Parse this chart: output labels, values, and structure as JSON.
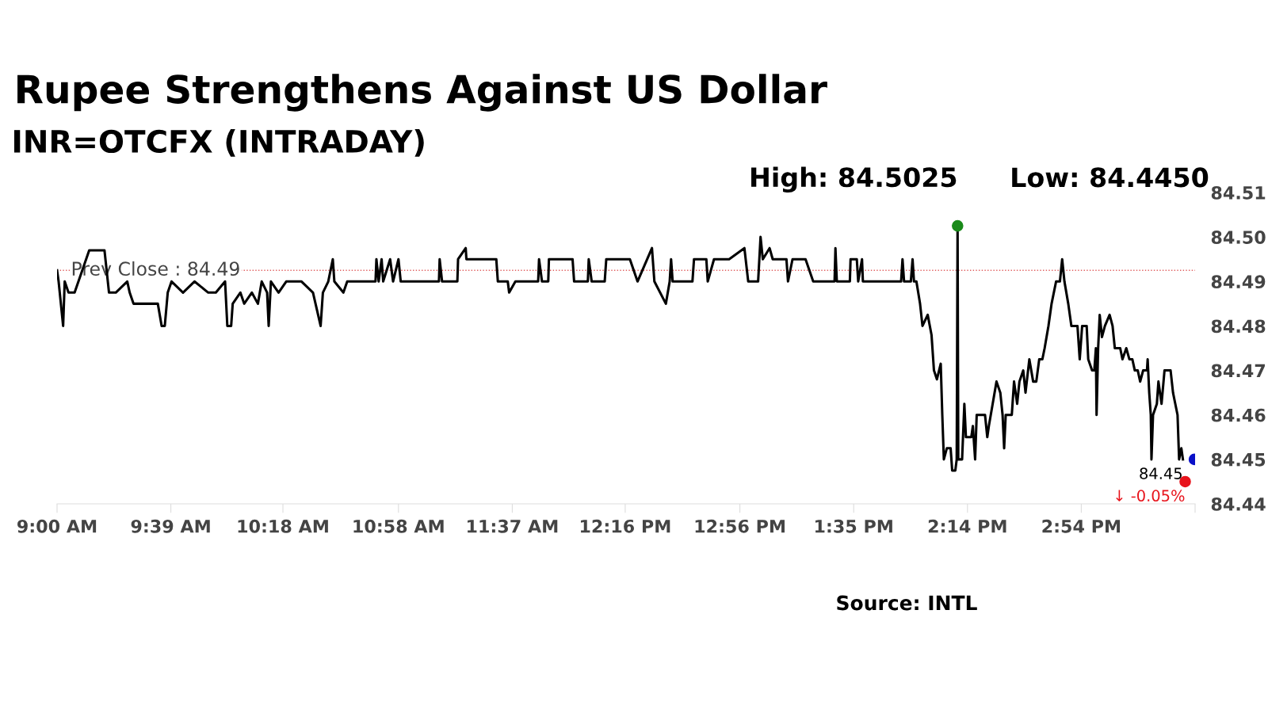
{
  "chart_data": {
    "type": "line",
    "title": "Rupee Strengthens Against US Dollar",
    "subtitle": "INR=OTCFX (INTRADAY)",
    "annotations": [
      "High: 84.5025",
      "Low: 84.4450",
      {
        "text": "84.45",
        "x": 15.48,
        "y": 84.45
      },
      {
        "text": "↓ -0.05%",
        "x": 15.493,
        "y": 84.445
      },
      "Source: INTL"
    ],
    "xlim": [
      9,
      15.55
    ],
    "ylim": [
      84.44,
      84.51
    ],
    "xticks": [
      {
        "value": 9,
        "label": "9:00 AM"
      },
      {
        "value": 9.655,
        "label": "9:39 AM"
      },
      {
        "value": 10.3,
        "label": "10:18 AM"
      },
      {
        "value": 10.965,
        "label": "10:58 AM"
      },
      {
        "value": 11.62,
        "label": "11:37 AM"
      },
      {
        "value": 12.27,
        "label": "12:16 PM"
      },
      {
        "value": 12.93,
        "label": "12:56 PM"
      },
      {
        "value": 13.585,
        "label": "1:35 PM"
      },
      {
        "value": 14.24,
        "label": "2:14 PM"
      },
      {
        "value": 14.895,
        "label": "2:54 PM"
      },
      {
        "value": 15.55,
        "label": null
      }
    ],
    "yticks": [
      84.44,
      84.45,
      84.46,
      84.47,
      84.48,
      84.49,
      {
        "value": 84.5,
        "label": "84.50"
      },
      84.51
    ],
    "grid": false,
    "legend": false,
    "ref_lines": [
      {
        "axis": "y",
        "value": 84.4925,
        "label": "Prev Close : 84.49",
        "color": "#e06060",
        "line_style": "dotted"
      }
    ],
    "series": [
      {
        "color": "#000000",
        "x": [
          9.0,
          9.009,
          9.035,
          9.044,
          9.066,
          9.101,
          9.185,
          9.273,
          9.299,
          9.338,
          9.404,
          9.418,
          9.44,
          9.58,
          9.602,
          9.62,
          9.637,
          9.659,
          9.725,
          9.791,
          9.87,
          9.914,
          9.967,
          9.98,
          10.002,
          10.011,
          10.055,
          10.077,
          10.121,
          10.156,
          10.178,
          10.209,
          10.218,
          10.231,
          10.275,
          10.319,
          10.407,
          10.473,
          10.517,
          10.53,
          10.561,
          10.587,
          10.596,
          10.648,
          10.67,
          10.833,
          10.838,
          10.851,
          10.868,
          10.877,
          10.917,
          10.934,
          10.965,
          10.978,
          11.198,
          11.202,
          11.216,
          11.304,
          11.308,
          11.352,
          11.356,
          11.528,
          11.537,
          11.594,
          11.602,
          11.638,
          11.769,
          11.774,
          11.791,
          11.827,
          11.831,
          11.967,
          11.976,
          12.055,
          12.06,
          12.077,
          12.152,
          12.161,
          12.297,
          12.341,
          12.424,
          12.438,
          12.504,
          12.526,
          12.534,
          12.543,
          12.657,
          12.666,
          12.737,
          12.745,
          12.781,
          12.868,
          12.956,
          12.978,
          13.035,
          13.049,
          13.062,
          13.101,
          13.119,
          13.198,
          13.207,
          13.233,
          13.308,
          13.352,
          13.475,
          13.48,
          13.488,
          13.563,
          13.567,
          13.603,
          13.611,
          13.633,
          13.638,
          13.858,
          13.866,
          13.875,
          13.914,
          13.924,
          13.932,
          13.946,
          13.967,
          13.981,
          14.011,
          14.033,
          14.047,
          14.064,
          14.086,
          14.095,
          14.104,
          14.121,
          14.143,
          14.152,
          14.17,
          14.178,
          14.183,
          14.187,
          14.209,
          14.222,
          14.231,
          14.262,
          14.271,
          14.284,
          14.293,
          14.341,
          14.354,
          14.363,
          14.385,
          14.407,
          14.429,
          14.442,
          14.451,
          14.46,
          14.495,
          14.508,
          14.526,
          14.539,
          14.561,
          14.574,
          14.596,
          14.618,
          14.636,
          14.653,
          14.671,
          14.684,
          14.706,
          14.724,
          14.75,
          14.772,
          14.785,
          14.798,
          14.82,
          14.838,
          14.873,
          14.886,
          14.9,
          14.926,
          14.935,
          14.957,
          14.97,
          14.979,
          14.983,
          14.992,
          15.001,
          15.014,
          15.031,
          15.058,
          15.075,
          15.088,
          15.119,
          15.132,
          15.154,
          15.172,
          15.189,
          15.203,
          15.22,
          15.234,
          15.251,
          15.273,
          15.277,
          15.286,
          15.295,
          15.299,
          15.308,
          15.33,
          15.339,
          15.357,
          15.374,
          15.409,
          15.423,
          15.436,
          15.449,
          15.458,
          15.471,
          15.48
        ],
        "values": [
          84.4925,
          84.49,
          84.48,
          84.49,
          84.4875,
          84.4875,
          84.497,
          84.497,
          84.4875,
          84.4875,
          84.49,
          84.4875,
          84.485,
          84.485,
          84.48,
          84.48,
          84.4875,
          84.49,
          84.4875,
          84.49,
          84.4875,
          84.4875,
          84.49,
          84.48,
          84.48,
          84.485,
          84.4875,
          84.485,
          84.4875,
          84.485,
          84.49,
          84.4875,
          84.48,
          84.49,
          84.4875,
          84.49,
          84.49,
          84.4875,
          84.48,
          84.4875,
          84.49,
          84.495,
          84.49,
          84.4875,
          84.49,
          84.49,
          84.495,
          84.49,
          84.495,
          84.49,
          84.495,
          84.49,
          84.495,
          84.49,
          84.49,
          84.495,
          84.49,
          84.49,
          84.495,
          84.4975,
          84.495,
          84.495,
          84.49,
          84.49,
          84.4875,
          84.49,
          84.49,
          84.495,
          84.49,
          84.49,
          84.495,
          84.495,
          84.49,
          84.49,
          84.495,
          84.49,
          84.49,
          84.495,
          84.495,
          84.49,
          84.4975,
          84.49,
          84.485,
          84.49,
          84.495,
          84.49,
          84.49,
          84.495,
          84.495,
          84.49,
          84.495,
          84.495,
          84.4975,
          84.49,
          84.49,
          84.5,
          84.495,
          84.4975,
          84.495,
          84.495,
          84.49,
          84.495,
          84.495,
          84.49,
          84.49,
          84.4975,
          84.49,
          84.49,
          84.495,
          84.495,
          84.49,
          84.495,
          84.49,
          84.49,
          84.495,
          84.49,
          84.49,
          84.495,
          84.49,
          84.49,
          84.485,
          84.48,
          84.4825,
          84.478,
          84.47,
          84.468,
          84.4715,
          84.46,
          84.45,
          84.4525,
          84.4525,
          84.4475,
          84.4475,
          84.45,
          84.5025,
          84.45,
          84.45,
          84.4625,
          84.455,
          84.455,
          84.4575,
          84.45,
          84.46,
          84.46,
          84.455,
          84.4575,
          84.4625,
          84.4675,
          84.465,
          84.46,
          84.4525,
          84.46,
          84.46,
          84.4675,
          84.4625,
          84.4675,
          84.47,
          84.465,
          84.4725,
          84.4675,
          84.4675,
          84.4725,
          84.4725,
          84.475,
          84.48,
          84.485,
          84.49,
          84.49,
          84.495,
          84.49,
          84.485,
          84.48,
          84.48,
          84.4725,
          84.48,
          84.48,
          84.4725,
          84.47,
          84.47,
          84.475,
          84.46,
          84.475,
          84.4825,
          84.4775,
          84.48,
          84.4825,
          84.48,
          84.475,
          84.475,
          84.4725,
          84.475,
          84.4725,
          84.4725,
          84.47,
          84.47,
          84.4675,
          84.47,
          84.47,
          84.4725,
          84.465,
          84.46,
          84.45,
          84.46,
          84.4625,
          84.4675,
          84.4625,
          84.47,
          84.47,
          84.465,
          84.4625,
          84.46,
          84.45,
          84.4525,
          84.45
        ]
      },
      {
        "type": "scatter",
        "color": "#1a8a1a",
        "marker": "circle",
        "x": [
          14.183
        ],
        "values": [
          84.5025
        ]
      },
      {
        "type": "scatter",
        "color": "#e8141c",
        "marker": "circle",
        "x": [
          15.493
        ],
        "values": [
          84.445
        ]
      },
      {
        "type": "scatter",
        "color": "#0a10c8",
        "marker": "circle",
        "x": [
          15.546
        ],
        "values": [
          84.45
        ]
      }
    ]
  }
}
